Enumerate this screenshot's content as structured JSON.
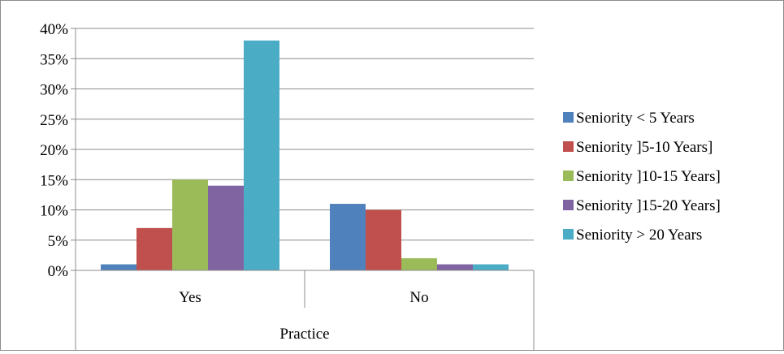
{
  "chart_data": {
    "type": "bar",
    "title": "",
    "xlabel": "Practice",
    "ylabel": "",
    "categories": [
      "Yes",
      "No"
    ],
    "ylim": [
      0,
      40
    ],
    "y_ticks": [
      "0%",
      "5%",
      "10%",
      "15%",
      "20%",
      "25%",
      "30%",
      "35%",
      "40%"
    ],
    "grid": true,
    "legend_position": "right",
    "series": [
      {
        "name": "Seniority < 5 Years",
        "color": "#4f81bd",
        "values": [
          1,
          11
        ]
      },
      {
        "name": "Seniority ]5-10 Years]",
        "color": "#c0504d",
        "values": [
          7,
          10
        ]
      },
      {
        "name": "Seniority ]10-15 Years]",
        "color": "#9bbb59",
        "values": [
          15,
          2
        ]
      },
      {
        "name": "Seniority ]15-20 Years]",
        "color": "#8064a2",
        "values": [
          14,
          1
        ]
      },
      {
        "name": "Seniority > 20 Years",
        "color": "#4bacc6",
        "values": [
          38,
          1
        ]
      }
    ]
  }
}
